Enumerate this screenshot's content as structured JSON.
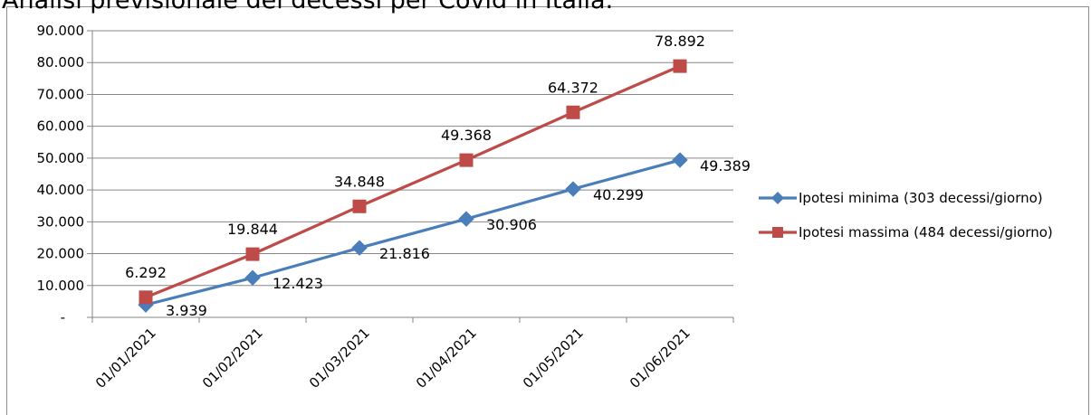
{
  "chart_data": {
    "type": "line",
    "title": "Analisi previsionale dei decessi per Covid in Italia.",
    "categories": [
      "01/01/2021",
      "01/02/2021",
      "01/03/2021",
      "01/04/2021",
      "01/05/2021",
      "01/06/2021"
    ],
    "series": [
      {
        "name": "Ipotesi minima (303 decessi/giorno)",
        "values": [
          3939,
          12423,
          21816,
          30906,
          40299,
          49389
        ],
        "labels": [
          "3.939",
          "12.423",
          "21.816",
          "30.906",
          "40.299",
          "49.389"
        ],
        "color": "#4a7ebb",
        "marker": "diamond"
      },
      {
        "name": "Ipotesi massima (484 decessi/giorno)",
        "values": [
          6292,
          19844,
          34848,
          49368,
          64372,
          78892
        ],
        "labels": [
          "6.292",
          "19.844",
          "34.848",
          "49.368",
          "64.372",
          "78.892"
        ],
        "color": "#be4b48",
        "marker": "square"
      }
    ],
    "ylim": [
      0,
      90000
    ],
    "yticks": [
      0,
      10000,
      20000,
      30000,
      40000,
      50000,
      60000,
      70000,
      80000,
      90000
    ],
    "ytick_labels": [
      "-",
      "10.000",
      "20.000",
      "30.000",
      "40.000",
      "50.000",
      "60.000",
      "70.000",
      "80.000",
      "90.000"
    ],
    "grid": true,
    "legend_position": "right",
    "xlabel": "",
    "ylabel": ""
  }
}
